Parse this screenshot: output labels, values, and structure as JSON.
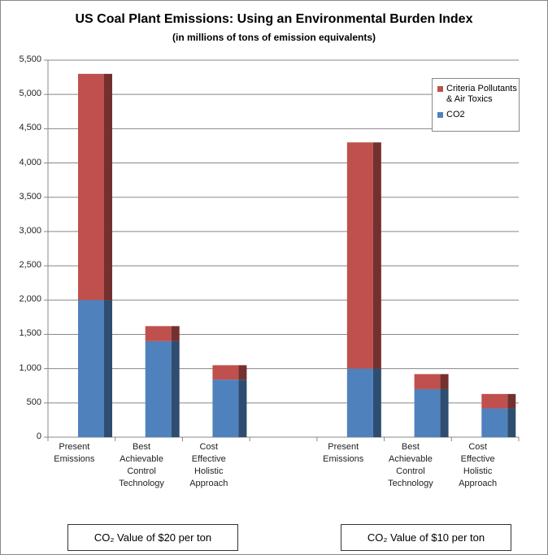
{
  "chart_data": {
    "type": "bar",
    "stacked": true,
    "title": "US Coal Plant Emissions: Using an Environmental Burden Index",
    "subtitle": "(in millions of tons of emission equivalents)",
    "categories": [
      "Present\nEmissions",
      "Best\nAchievable\nControl\nTechnology",
      "Cost\nEffective\nHolistic\nApproach",
      null,
      "Present\nEmissions",
      "Best\nAchievable\nControl\nTechnology",
      "Cost\nEffective\nHolistic\nApproach"
    ],
    "series": [
      {
        "name": "CO2",
        "color": "#4f81bd",
        "values": [
          2000,
          1400,
          840,
          null,
          1000,
          700,
          420
        ]
      },
      {
        "name": "Criteria Pollutants\n& Air Toxics",
        "color": "#c0504d",
        "values": [
          3300,
          220,
          210,
          null,
          3300,
          220,
          210
        ]
      }
    ],
    "groups": [
      "CO₂ Value of $20 per ton",
      "CO₂ Value of $10 per ton"
    ],
    "ylim": [
      0,
      5500
    ],
    "yticks": [
      0,
      500,
      {
        "value": 1000,
        "label": "1,000"
      },
      {
        "value": 1500,
        "label": "1,500"
      },
      {
        "value": 2000,
        "label": "2,000"
      },
      {
        "value": 2500,
        "label": "2,500"
      },
      {
        "value": 3000,
        "label": "3,000"
      },
      {
        "value": 3500,
        "label": "3,500"
      },
      {
        "value": 4000,
        "label": "4,000"
      },
      {
        "value": 4500,
        "label": "4,500"
      },
      {
        "value": 5000,
        "label": "5,000"
      },
      {
        "value": 5500,
        "label": "5,500"
      }
    ],
    "grid": true,
    "legend": "upper right"
  }
}
